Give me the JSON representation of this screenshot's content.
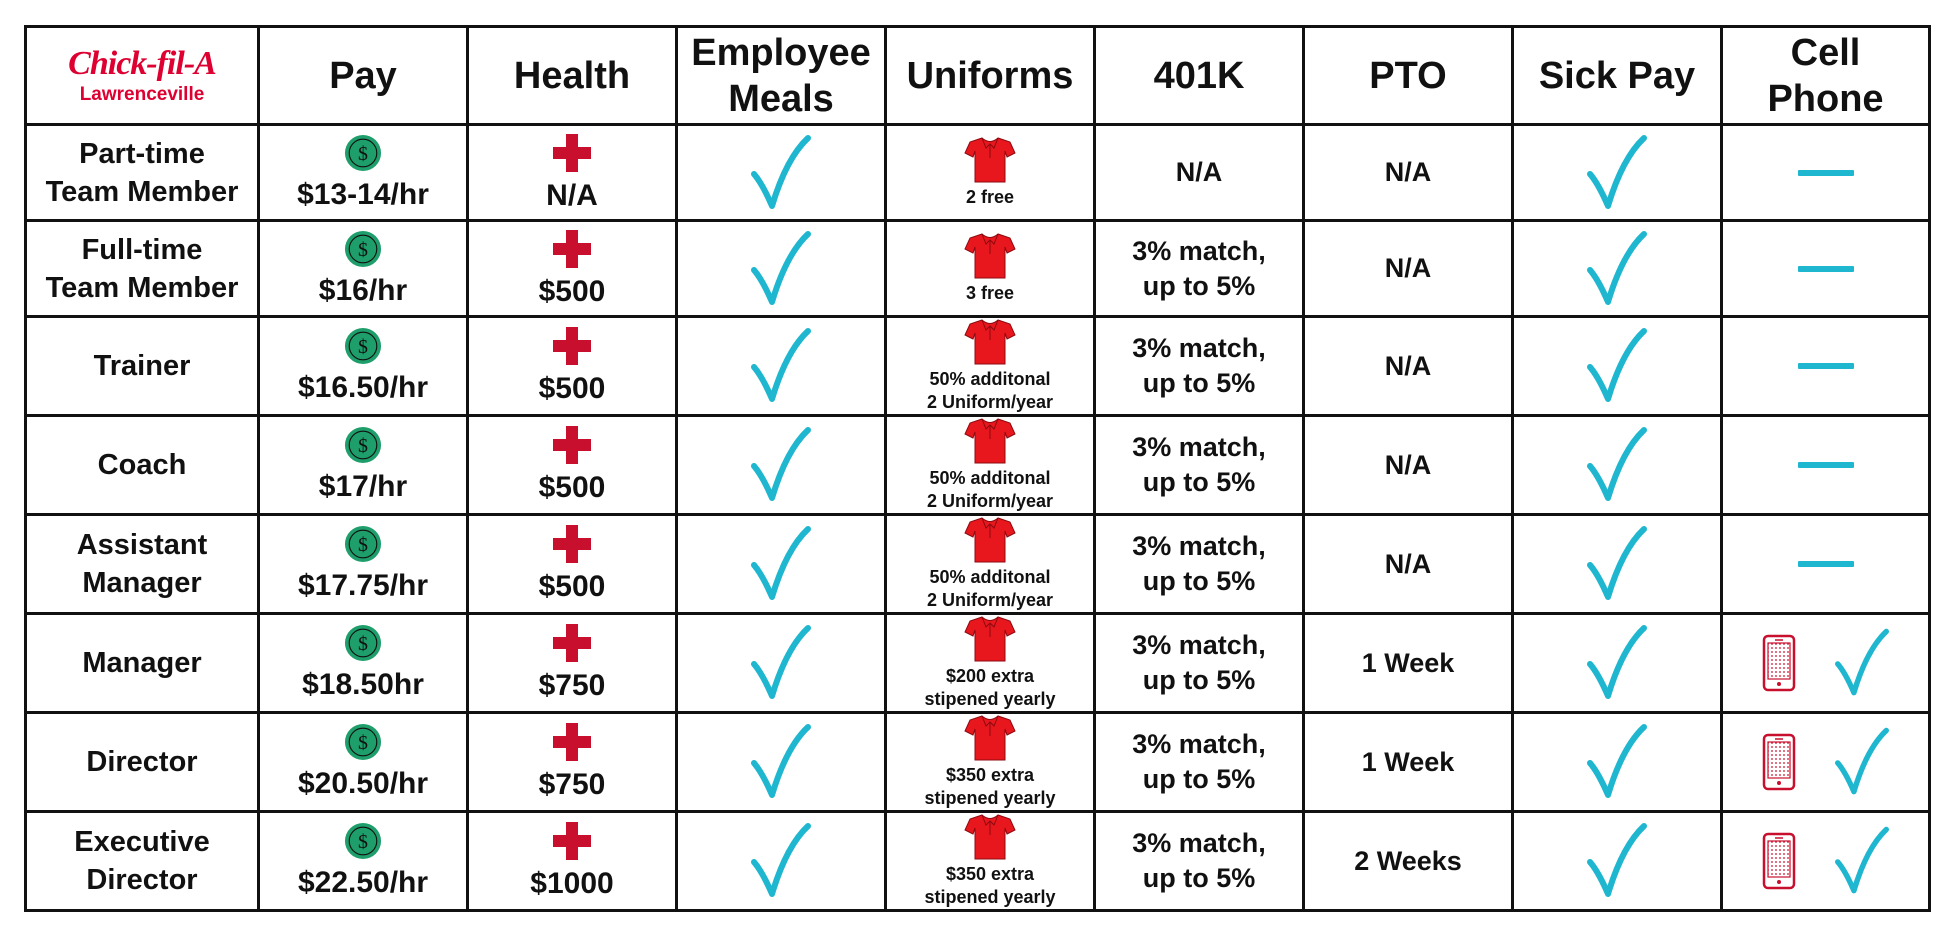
{
  "brand": {
    "logo": "Chick-fil-A",
    "location": "Lawrenceville"
  },
  "headers": {
    "pay": "Pay",
    "health": "Health",
    "meals": [
      "Employee",
      "Meals"
    ],
    "uniforms": "Uniforms",
    "k401": "401K",
    "pto": "PTO",
    "sick": "Sick Pay",
    "phone": [
      "Cell",
      "Phone"
    ]
  },
  "icons": {
    "pay": "dollar-coin-icon",
    "health": "medical-cross-icon",
    "uniforms": "red-shirt-icon",
    "included": "checkmark-icon",
    "not_included": "dash-icon",
    "cell_phone": "cell-phone-icon"
  },
  "colors": {
    "brand_red": "#dd0031",
    "cross_red": "#c8102e",
    "shirt_red": "#e8161d",
    "coin_green": "#1e9e6a",
    "check_teal": "#1fb6cf"
  },
  "rows": [
    {
      "role": [
        "Part-time",
        "Team Member"
      ],
      "pay": "$13-14/hr",
      "health": "N/A",
      "meals": true,
      "uniform_note": [
        "2 free"
      ],
      "k401": [
        "N/A"
      ],
      "pto": "N/A",
      "sick": true,
      "phone": false
    },
    {
      "role": [
        "Full-time",
        "Team Member"
      ],
      "pay": "$16/hr",
      "health": "$500",
      "meals": true,
      "uniform_note": [
        "3 free"
      ],
      "k401": [
        "3% match,",
        "up to 5%"
      ],
      "pto": "N/A",
      "sick": true,
      "phone": false
    },
    {
      "role": [
        "Trainer"
      ],
      "pay": "$16.50/hr",
      "health": "$500",
      "meals": true,
      "uniform_note": [
        "50% additonal",
        "2 Uniform/year"
      ],
      "k401": [
        "3% match,",
        "up to 5%"
      ],
      "pto": "N/A",
      "sick": true,
      "phone": false
    },
    {
      "role": [
        "Coach"
      ],
      "pay": "$17/hr",
      "health": "$500",
      "meals": true,
      "uniform_note": [
        "50% additonal",
        "2 Uniform/year"
      ],
      "k401": [
        "3% match,",
        "up to 5%"
      ],
      "pto": "N/A",
      "sick": true,
      "phone": false
    },
    {
      "role": [
        "Assistant",
        "Manager"
      ],
      "pay": "$17.75/hr",
      "health": "$500",
      "meals": true,
      "uniform_note": [
        "50% additonal",
        "2 Uniform/year"
      ],
      "k401": [
        "3% match,",
        "up to 5%"
      ],
      "pto": "N/A",
      "sick": true,
      "phone": false
    },
    {
      "role": [
        "Manager"
      ],
      "pay": "$18.50hr",
      "health": "$750",
      "meals": true,
      "uniform_note": [
        "$200 extra",
        "stipened yearly"
      ],
      "k401": [
        "3% match,",
        "up to 5%"
      ],
      "pto": "1 Week",
      "sick": true,
      "phone": true
    },
    {
      "role": [
        "Director"
      ],
      "pay": "$20.50/hr",
      "health": "$750",
      "meals": true,
      "uniform_note": [
        "$350 extra",
        "stipened yearly"
      ],
      "k401": [
        "3% match,",
        "up to 5%"
      ],
      "pto": "1 Week",
      "sick": true,
      "phone": true
    },
    {
      "role": [
        "Executive",
        "Director"
      ],
      "pay": "$22.50/hr",
      "health": "$1000",
      "meals": true,
      "uniform_note": [
        "$350 extra",
        "stipened yearly"
      ],
      "k401": [
        "3% match,",
        "up to 5%"
      ],
      "pto": "2 Weeks",
      "sick": true,
      "phone": true
    }
  ]
}
